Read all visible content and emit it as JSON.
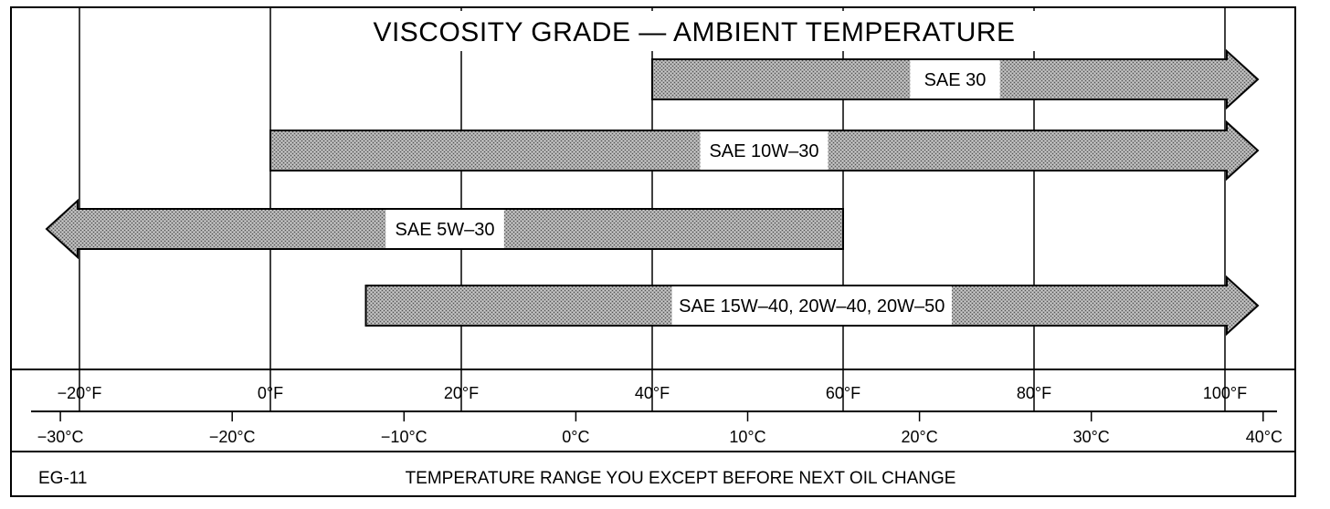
{
  "chart_data": {
    "type": "range-bar",
    "title": "VISCOSITY GRADE — AMBIENT TEMPERATURE",
    "x_unit_primary": "°F",
    "x_unit_secondary": "°C",
    "xlim_f": [
      -30,
      112
    ],
    "grid": true,
    "fahrenheit_ticks": [
      {
        "value": -20,
        "label": "−20°F"
      },
      {
        "value": 0,
        "label": "0°F"
      },
      {
        "value": 20,
        "label": "20°F"
      },
      {
        "value": 40,
        "label": "40°F"
      },
      {
        "value": 60,
        "label": "60°F"
      },
      {
        "value": 80,
        "label": "80°F"
      },
      {
        "value": 100,
        "label": "100°F"
      }
    ],
    "celsius_ticks": [
      {
        "value": -30,
        "label": "−30°C"
      },
      {
        "value": -20,
        "label": "−20°C"
      },
      {
        "value": -10,
        "label": "−10°C"
      },
      {
        "value": 0,
        "label": "0°C"
      },
      {
        "value": 10,
        "label": "10°C"
      },
      {
        "value": 20,
        "label": "20°C"
      },
      {
        "value": 30,
        "label": "30°C"
      },
      {
        "value": 40,
        "label": "40°C"
      }
    ],
    "bars": [
      {
        "label": "SAE 30",
        "from_f": 40,
        "to_f": 100,
        "open_low": false,
        "open_high": true
      },
      {
        "label": "SAE 10W–30",
        "from_f": 0,
        "to_f": 100,
        "open_low": false,
        "open_high": true
      },
      {
        "label": "SAE 5W–30",
        "from_f": -20,
        "to_f": 60,
        "open_low": true,
        "open_high": false
      },
      {
        "label": "SAE 15W–40, 20W–40, 20W–50",
        "from_f": 10,
        "to_f": 100,
        "open_low": false,
        "open_high": true
      }
    ],
    "footer_code": "EG-11",
    "footer_caption": "TEMPERATURE RANGE YOU EXCEPT BEFORE NEXT OIL CHANGE"
  },
  "colors": {
    "bar_fill": "#9a9a9a",
    "bar_stroke": "#000000",
    "grid": "#000000",
    "label_box": "#ffffff"
  }
}
